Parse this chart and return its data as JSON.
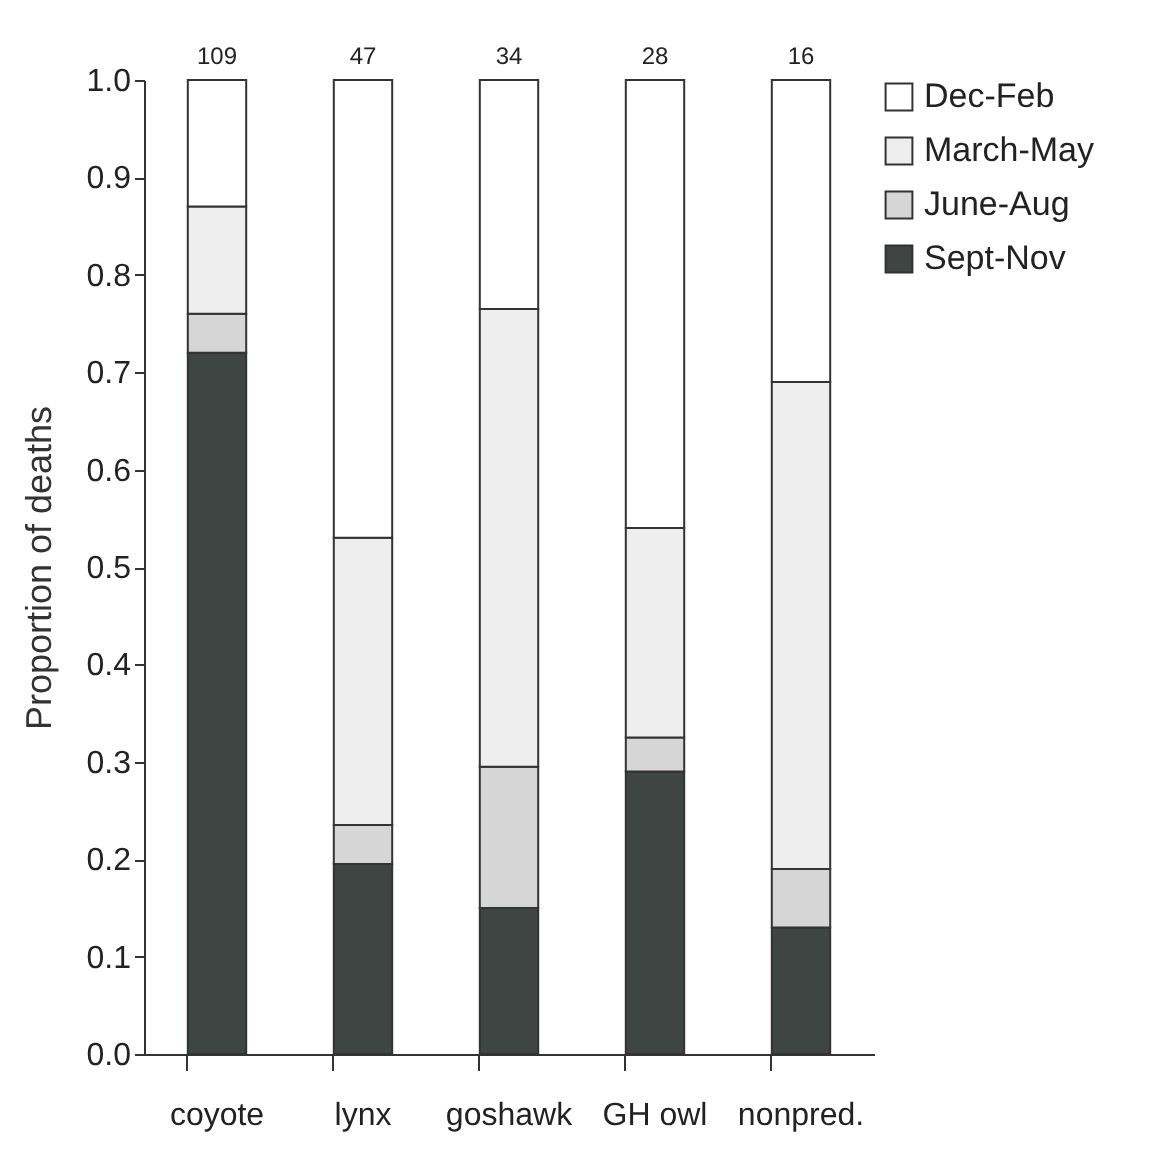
{
  "chart_data": {
    "type": "bar",
    "stacked": true,
    "ylabel": "Proportion of deaths",
    "categories": [
      "coyote",
      "lynx",
      "goshawk",
      "GH owl",
      "nonpred."
    ],
    "series": [
      {
        "name": "Sept-Nov",
        "color": "#3f4543",
        "values": [
          0.72,
          0.195,
          0.15,
          0.29,
          0.13
        ]
      },
      {
        "name": "June-Aug",
        "color": "#d6d6d6",
        "values": [
          0.04,
          0.04,
          0.145,
          0.035,
          0.06
        ]
      },
      {
        "name": "March-May",
        "color": "#eeeeee",
        "values": [
          0.11,
          0.295,
          0.47,
          0.215,
          0.5
        ]
      },
      {
        "name": "Dec-Feb",
        "color": "#ffffff",
        "values": [
          0.13,
          0.47,
          0.235,
          0.46,
          0.31
        ]
      }
    ],
    "ylim": [
      0,
      1
    ],
    "yticks": [
      {
        "value": 0,
        "label": "0.0"
      },
      {
        "value": 0.1,
        "label": "0.1"
      },
      {
        "value": 0.2,
        "label": "0.2"
      },
      {
        "value": 0.3,
        "label": "0.3"
      },
      {
        "value": 0.4,
        "label": "0.4"
      },
      {
        "value": 0.5,
        "label": "0.5"
      },
      {
        "value": 0.6,
        "label": "0.6"
      },
      {
        "value": 0.7,
        "label": "0.7"
      },
      {
        "value": 0.8,
        "label": "0.8"
      },
      {
        "value": 0.9,
        "label": "0.9"
      },
      {
        "value": 1,
        "label": "1.0"
      }
    ],
    "annotations": [
      {
        "text": "109",
        "x": "coyote",
        "y": 1
      },
      {
        "text": "47",
        "x": "lynx",
        "y": 1
      },
      {
        "text": "34",
        "x": "goshawk",
        "y": 1
      },
      {
        "text": "28",
        "x": "GH owl",
        "y": 1
      },
      {
        "text": "16",
        "x": "nonpred.",
        "y": 1
      }
    ],
    "grid": false,
    "legend": "right"
  }
}
